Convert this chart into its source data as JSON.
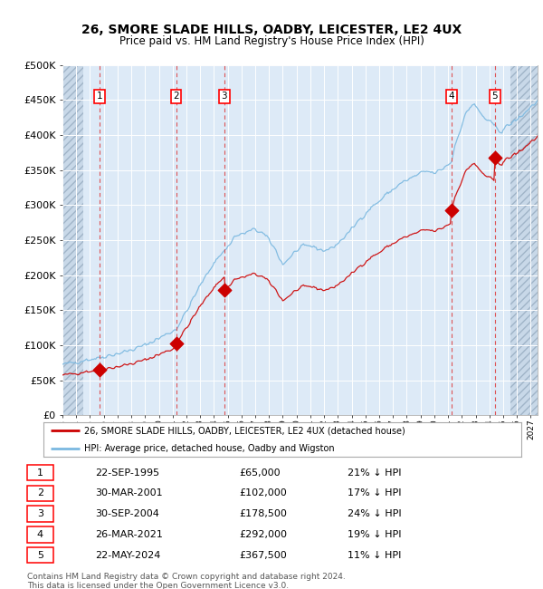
{
  "title": "26, SMORE SLADE HILLS, OADBY, LEICESTER, LE2 4UX",
  "subtitle": "Price paid vs. HM Land Registry's House Price Index (HPI)",
  "legend_line1": "26, SMORE SLADE HILLS, OADBY, LEICESTER, LE2 4UX (detached house)",
  "legend_line2": "HPI: Average price, detached house, Oadby and Wigston",
  "footer1": "Contains HM Land Registry data © Crown copyright and database right 2024.",
  "footer2": "This data is licensed under the Open Government Licence v3.0.",
  "sales": [
    {
      "num": 1,
      "date_label": "22-SEP-1995",
      "price": 65000,
      "pct": "21% ↓ HPI",
      "year": 1995.72
    },
    {
      "num": 2,
      "date_label": "30-MAR-2001",
      "price": 102000,
      "pct": "17% ↓ HPI",
      "year": 2001.25
    },
    {
      "num": 3,
      "date_label": "30-SEP-2004",
      "price": 178500,
      "pct": "24% ↓ HPI",
      "year": 2004.75
    },
    {
      "num": 4,
      "date_label": "26-MAR-2021",
      "price": 292000,
      "pct": "19% ↓ HPI",
      "year": 2021.23
    },
    {
      "num": 5,
      "date_label": "22-MAY-2024",
      "price": 367500,
      "pct": "11% ↓ HPI",
      "year": 2024.39
    }
  ],
  "hpi_color": "#7ab8e0",
  "sales_color": "#cc0000",
  "dashed_color": "#dd4444",
  "bg_color": "#ddeaf7",
  "grid_color": "#ffffff",
  "ylim": [
    0,
    500000
  ],
  "xlim_start": 1993.0,
  "xlim_end": 2027.5,
  "yticks": [
    0,
    50000,
    100000,
    150000,
    200000,
    250000,
    300000,
    350000,
    400000,
    450000,
    500000
  ],
  "ylabel_texts": [
    "£0",
    "£50K",
    "£100K",
    "£150K",
    "£200K",
    "£250K",
    "£300K",
    "£350K",
    "£400K",
    "£450K",
    "£500K"
  ]
}
